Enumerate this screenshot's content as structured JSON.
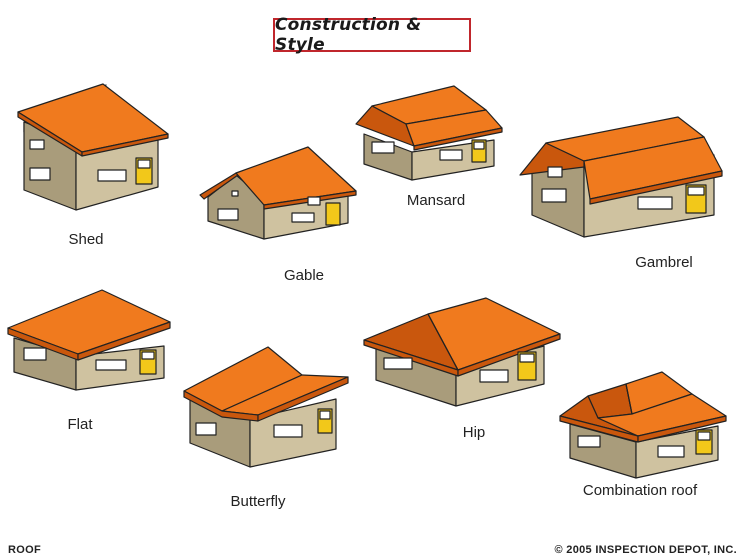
{
  "title": "Construction & Style",
  "styles": {
    "shed": "Shed",
    "gable": "Gable",
    "mansard": "Mansard",
    "gambrel": "Gambrel",
    "flat": "Flat",
    "butterfly": "Butterfly",
    "hip": "Hip",
    "combination": "Combination roof"
  },
  "footer": {
    "left": "ROOF",
    "right": "© 2005 INSPECTION DEPOT, INC."
  },
  "colors": {
    "roof": "#f07a1e",
    "roof_dark": "#c9570d",
    "wall": "#cfc2a0",
    "wall_dark": "#a99c7b",
    "door": "#f2c81a",
    "title_border": "#c0262c"
  }
}
